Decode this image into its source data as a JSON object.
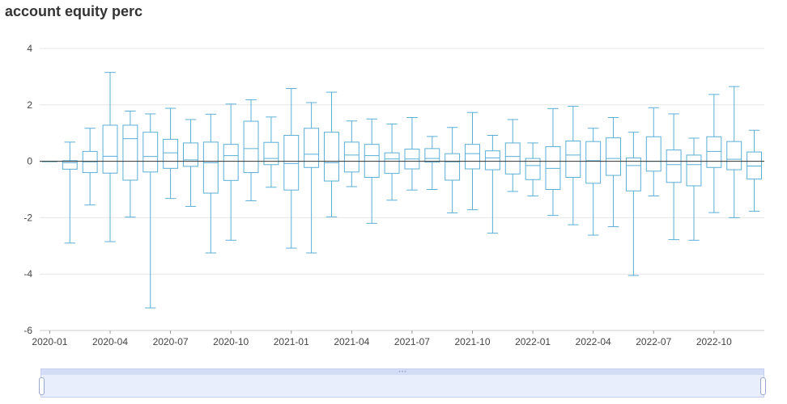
{
  "chart_data": {
    "type": "boxplot",
    "title": "account equity perc",
    "ylim": [
      -6,
      4
    ],
    "yticks": [
      -6,
      -4,
      -2,
      0,
      2,
      4
    ],
    "xtick_labels": [
      "2020-01",
      "2020-04",
      "2020-07",
      "2020-10",
      "2021-01",
      "2021-04",
      "2021-07",
      "2021-10",
      "2022-01",
      "2022-04",
      "2022-07",
      "2022-10"
    ],
    "grid": "horizontal",
    "colors": {
      "box": "#5aafd6",
      "grid": "#e6e6e6",
      "axis": "#333333"
    },
    "boxes": [
      {
        "x": "2020-01",
        "min": 0,
        "q1": 0,
        "median": 0,
        "q3": 0,
        "max": 0
      },
      {
        "x": "2020-02",
        "min": -2.9,
        "q1": -0.28,
        "median": -0.05,
        "q3": 0.02,
        "max": 0.68
      },
      {
        "x": "2020-03",
        "min": -1.55,
        "q1": -0.4,
        "median": -0.02,
        "q3": 0.35,
        "max": 1.17
      },
      {
        "x": "2020-04",
        "min": -2.85,
        "q1": -0.42,
        "median": 0.18,
        "q3": 1.28,
        "max": 3.15
      },
      {
        "x": "2020-05",
        "min": -1.98,
        "q1": -0.67,
        "median": 0.8,
        "q3": 1.28,
        "max": 1.78
      },
      {
        "x": "2020-06",
        "min": -5.2,
        "q1": -0.38,
        "median": 0.17,
        "q3": 1.03,
        "max": 1.68
      },
      {
        "x": "2020-07",
        "min": -1.32,
        "q1": -0.25,
        "median": 0.3,
        "q3": 0.78,
        "max": 1.88
      },
      {
        "x": "2020-08",
        "min": -1.6,
        "q1": -0.18,
        "median": 0.05,
        "q3": 0.65,
        "max": 1.48
      },
      {
        "x": "2020-09",
        "min": -3.25,
        "q1": -1.13,
        "median": -0.05,
        "q3": 0.68,
        "max": 1.67
      },
      {
        "x": "2020-10",
        "min": -2.8,
        "q1": -0.68,
        "median": 0.2,
        "q3": 0.6,
        "max": 2.03
      },
      {
        "x": "2020-11",
        "min": -1.4,
        "q1": -0.4,
        "median": 0.45,
        "q3": 1.42,
        "max": 2.18
      },
      {
        "x": "2020-12",
        "min": -0.92,
        "q1": -0.12,
        "median": 0.1,
        "q3": 0.67,
        "max": 1.57
      },
      {
        "x": "2021-01",
        "min": -3.08,
        "q1": -1.02,
        "median": -0.08,
        "q3": 0.92,
        "max": 2.58
      },
      {
        "x": "2021-02",
        "min": -3.25,
        "q1": -0.22,
        "median": 0.25,
        "q3": 1.17,
        "max": 2.08
      },
      {
        "x": "2021-03",
        "min": -1.97,
        "q1": -0.7,
        "median": -0.05,
        "q3": 1.03,
        "max": 2.45
      },
      {
        "x": "2021-04",
        "min": -0.9,
        "q1": -0.38,
        "median": 0.22,
        "q3": 0.68,
        "max": 1.43
      },
      {
        "x": "2021-05",
        "min": -2.2,
        "q1": -0.57,
        "median": 0.2,
        "q3": 0.6,
        "max": 1.5
      },
      {
        "x": "2021-06",
        "min": -1.38,
        "q1": -0.43,
        "median": 0.08,
        "q3": 0.3,
        "max": 1.32
      },
      {
        "x": "2021-07",
        "min": -1.02,
        "q1": -0.27,
        "median": 0.08,
        "q3": 0.43,
        "max": 1.55
      },
      {
        "x": "2021-08",
        "min": -1.0,
        "q1": -0.03,
        "median": 0.1,
        "q3": 0.45,
        "max": 0.88
      },
      {
        "x": "2021-09",
        "min": -1.83,
        "q1": -0.67,
        "median": -0.02,
        "q3": 0.27,
        "max": 1.2
      },
      {
        "x": "2021-10",
        "min": -1.72,
        "q1": -0.27,
        "median": 0.27,
        "q3": 0.6,
        "max": 1.73
      },
      {
        "x": "2021-11",
        "min": -2.55,
        "q1": -0.3,
        "median": 0.12,
        "q3": 0.37,
        "max": 0.92
      },
      {
        "x": "2021-12",
        "min": -1.07,
        "q1": -0.45,
        "median": 0.17,
        "q3": 0.65,
        "max": 1.48
      },
      {
        "x": "2022-01",
        "min": -1.23,
        "q1": -0.65,
        "median": -0.15,
        "q3": 0.1,
        "max": 0.65
      },
      {
        "x": "2022-02",
        "min": -1.92,
        "q1": -1.0,
        "median": -0.25,
        "q3": 0.52,
        "max": 1.87
      },
      {
        "x": "2022-03",
        "min": -2.25,
        "q1": -0.57,
        "median": 0.22,
        "q3": 0.72,
        "max": 1.95
      },
      {
        "x": "2022-04",
        "min": -2.62,
        "q1": -0.78,
        "median": 0.02,
        "q3": 0.7,
        "max": 1.17
      },
      {
        "x": "2022-05",
        "min": -2.32,
        "q1": -0.5,
        "median": 0.1,
        "q3": 0.83,
        "max": 1.55
      },
      {
        "x": "2022-06",
        "min": -4.05,
        "q1": -1.05,
        "median": -0.15,
        "q3": 0.12,
        "max": 1.03
      },
      {
        "x": "2022-07",
        "min": -1.23,
        "q1": -0.35,
        "median": 0.0,
        "q3": 0.87,
        "max": 1.9
      },
      {
        "x": "2022-08",
        "min": -2.78,
        "q1": -0.75,
        "median": -0.12,
        "q3": 0.4,
        "max": 1.68
      },
      {
        "x": "2022-09",
        "min": -2.8,
        "q1": -0.87,
        "median": -0.12,
        "q3": 0.22,
        "max": 0.82
      },
      {
        "x": "2022-10",
        "min": -1.82,
        "q1": -0.22,
        "median": 0.35,
        "q3": 0.87,
        "max": 2.37
      },
      {
        "x": "2022-11",
        "min": -2.0,
        "q1": -0.3,
        "median": 0.07,
        "q3": 0.7,
        "max": 2.65
      },
      {
        "x": "2022-12",
        "min": -1.77,
        "q1": -0.63,
        "median": -0.17,
        "q3": 0.33,
        "max": 1.1
      }
    ]
  }
}
